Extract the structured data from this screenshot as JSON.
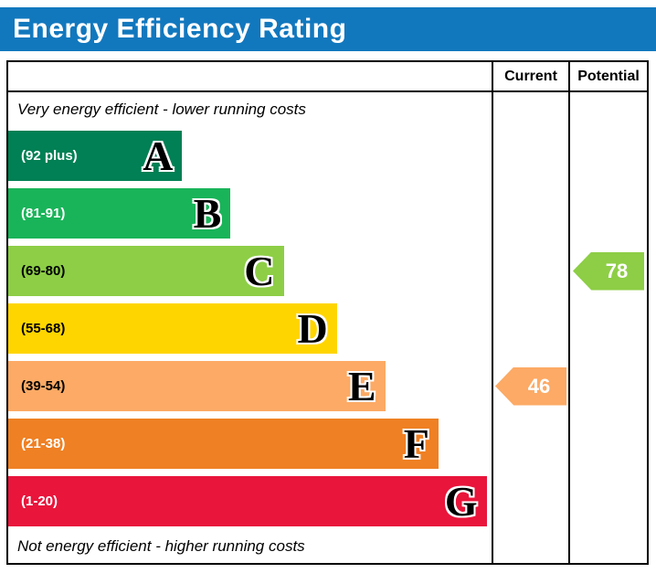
{
  "title": "Energy Efficiency Rating",
  "header": {
    "current": "Current",
    "potential": "Potential"
  },
  "notes": {
    "top": "Very energy efficient - lower running costs",
    "bottom": "Not energy efficient - higher running costs"
  },
  "colors": {
    "title_bar": "#1278be",
    "border": "#000000"
  },
  "chart_data": {
    "type": "bar",
    "orientation": "horizontal",
    "title": "Energy Efficiency Rating",
    "bands": [
      {
        "letter": "A",
        "range": "(92 plus)",
        "color": "#008054",
        "width_pct": 36,
        "label_color": "#ffffff"
      },
      {
        "letter": "B",
        "range": "(81-91)",
        "color": "#19b459",
        "width_pct": 46,
        "label_color": "#ffffff"
      },
      {
        "letter": "C",
        "range": "(69-80)",
        "color": "#8dce46",
        "width_pct": 57,
        "label_color": "#000000"
      },
      {
        "letter": "D",
        "range": "(55-68)",
        "color": "#ffd500",
        "width_pct": 68,
        "label_color": "#000000"
      },
      {
        "letter": "E",
        "range": "(39-54)",
        "color": "#fcaa65",
        "width_pct": 78,
        "label_color": "#000000"
      },
      {
        "letter": "F",
        "range": "(21-38)",
        "color": "#ef8023",
        "width_pct": 89,
        "label_color": "#ffffff"
      },
      {
        "letter": "G",
        "range": "(1-20)",
        "color": "#e9153b",
        "width_pct": 99,
        "label_color": "#ffffff"
      }
    ],
    "current": {
      "value": 46,
      "band": "E",
      "color": "#fcaa65"
    },
    "potential": {
      "value": 78,
      "band": "C",
      "color": "#8dce46"
    }
  }
}
